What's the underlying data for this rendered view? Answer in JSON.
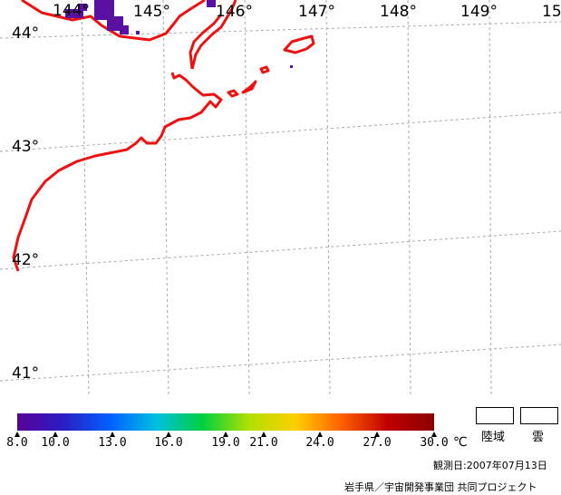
{
  "map": {
    "lon_labels": [
      "144°",
      "145°",
      "146°",
      "147°",
      "148°",
      "149°",
      "15"
    ],
    "lat_labels": [
      "44°",
      "43°",
      "42°",
      "41°"
    ],
    "colors": {
      "coastline": "#ee1111",
      "grid": "#aaaaaa",
      "data_pixels": "#5a10a0"
    }
  },
  "legend": {
    "scale": {
      "min": 8.0,
      "max": 30.0,
      "tick_labels": [
        "8.0",
        "10.0",
        "13.0",
        "16.0",
        "19.0",
        "21.0",
        "24.0",
        "27.0",
        "30.0"
      ],
      "unit": "℃",
      "gradient_colors": [
        "#5a0096",
        "#2a1fc4",
        "#0060ff",
        "#00c0e0",
        "#00d040",
        "#b0e000",
        "#ffd000",
        "#ff6000",
        "#c00000",
        "#8a0000"
      ]
    },
    "land_label": "陸域",
    "cloud_label": "雲"
  },
  "observation_date": "観測日:2007年07月13日",
  "credit": "岩手県／宇宙開発事業団 共同プロジェクト"
}
